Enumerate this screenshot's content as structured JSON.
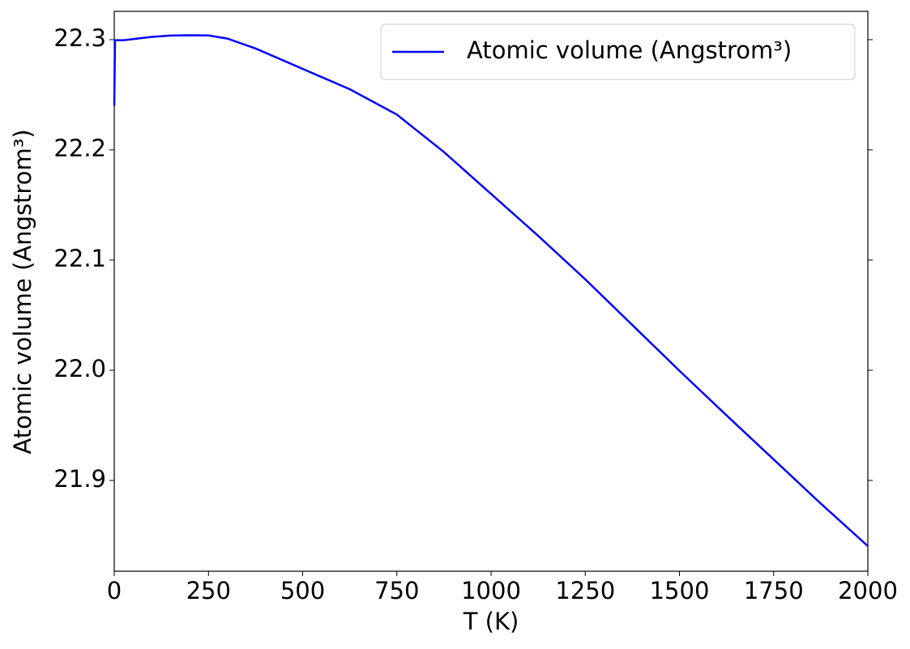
{
  "chart_data": {
    "type": "line",
    "xlabel": "T (K)",
    "ylabel": "Atomic volume (Angstrom³)",
    "x": [
      0,
      2,
      25,
      50,
      100,
      150,
      200,
      250,
      300,
      375,
      500,
      625,
      750,
      875,
      1000,
      1125,
      1250,
      1375,
      1500,
      1625,
      1750,
      1875,
      2000
    ],
    "series": [
      {
        "name": "Atomic volume (Angstrom³)",
        "color": "#0000ff",
        "values": [
          22.24,
          22.2995,
          22.2995,
          22.3005,
          22.3025,
          22.3037,
          22.304,
          22.3038,
          22.301,
          22.292,
          22.2735,
          22.255,
          22.232,
          22.198,
          22.16,
          22.122,
          22.0825,
          22.041,
          21.9995,
          21.959,
          21.919,
          21.879,
          21.8404
        ]
      }
    ],
    "xlim": [
      0,
      2000
    ],
    "ylim": [
      21.8176,
      22.3257
    ],
    "xticks": [
      0,
      250,
      500,
      750,
      1000,
      1250,
      1500,
      1750,
      2000
    ],
    "yticks": [
      21.9,
      {
        "value": 22,
        "label": "22.0"
      },
      22.1,
      22.2,
      22.3
    ],
    "legend": "upper right",
    "grid": false
  }
}
